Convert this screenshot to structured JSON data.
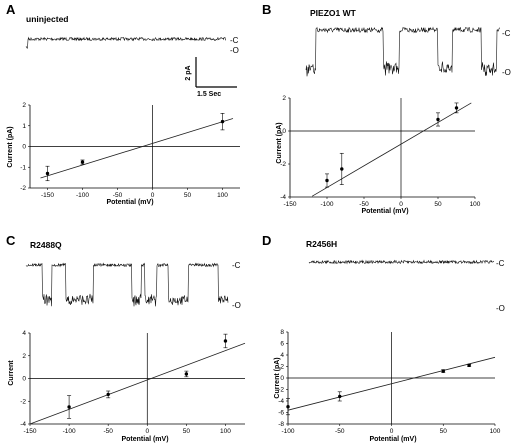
{
  "figure": {
    "scale_bar": {
      "y_label": "2 pA",
      "x_label": "1.5 Sec"
    },
    "state_labels": {
      "closed": "-C",
      "open": "-O"
    }
  },
  "chart_data": [
    {
      "panel": "A",
      "type": "scatter",
      "title": "uninjected",
      "xlabel": "Potential (mV)",
      "ylabel": "Current (pA)",
      "xlim": [
        -175,
        125
      ],
      "ylim": [
        -2,
        2
      ],
      "xticks": [
        "-150",
        "-100",
        "-50",
        "0",
        "50",
        "100"
      ],
      "yticks": [
        "-2",
        "-1",
        "0",
        "1",
        "2"
      ],
      "points": [
        {
          "x": -150,
          "y": -1.3,
          "err": 0.35
        },
        {
          "x": -100,
          "y": -0.75,
          "err": 0.1
        },
        {
          "x": 100,
          "y": 1.2,
          "err": 0.4
        }
      ],
      "fit_line": {
        "x": [
          -160,
          115
        ],
        "y": [
          -1.52,
          1.35
        ]
      },
      "trace": {
        "style": "flat",
        "open_fraction": 0.04
      }
    },
    {
      "panel": "B",
      "type": "scatter",
      "title": "PIEZO1 WT",
      "xlabel": "Potential (mV)",
      "ylabel": "Current (pA)",
      "xlim": [
        -150,
        100
      ],
      "ylim": [
        -4,
        2
      ],
      "xticks": [
        "-150",
        "-100",
        "-50",
        "0",
        "50",
        "100"
      ],
      "yticks": [
        "-4",
        "-2",
        "0",
        "2"
      ],
      "points": [
        {
          "x": -100,
          "y": -3.0,
          "err": 0.4
        },
        {
          "x": -80,
          "y": -2.3,
          "err": 0.95
        },
        {
          "x": 50,
          "y": 0.7,
          "err": 0.4
        },
        {
          "x": 75,
          "y": 1.4,
          "err": 0.3
        }
      ],
      "fit_line": {
        "x": [
          -120,
          95
        ],
        "y": [
          -3.95,
          1.7
        ]
      },
      "trace": {
        "style": "burst",
        "open_fraction": 0.45
      }
    },
    {
      "panel": "C",
      "type": "scatter",
      "title": "R2488Q",
      "xlabel": "Potential (mV)",
      "ylabel": "Current",
      "xlim": [
        -150,
        125
      ],
      "ylim": [
        -4,
        4
      ],
      "xticks": [
        "-150",
        "-100",
        "-50",
        "0",
        "50",
        "100"
      ],
      "yticks": [
        "-4",
        "-2",
        "0",
        "2",
        "4"
      ],
      "points": [
        {
          "x": -100,
          "y": -2.5,
          "err": 1.0
        },
        {
          "x": -50,
          "y": -1.4,
          "err": 0.3
        },
        {
          "x": 50,
          "y": 0.4,
          "err": 0.25
        },
        {
          "x": 100,
          "y": 3.3,
          "err": 0.6
        }
      ],
      "fit_line": {
        "x": [
          -150,
          125
        ],
        "y": [
          -4.0,
          3.1
        ]
      },
      "trace": {
        "style": "mixed",
        "open_fraction": 0.3
      }
    },
    {
      "panel": "D",
      "type": "scatter",
      "title": "R2456H",
      "xlabel": "Potential (mV)",
      "ylabel": "Current (pA)",
      "xlim": [
        -100,
        100
      ],
      "ylim": [
        -8,
        8
      ],
      "xticks": [
        "-100",
        "-50",
        "0",
        "50",
        "100"
      ],
      "yticks": [
        "-8",
        "-6",
        "-4",
        "-2",
        "0",
        "2",
        "4",
        "6",
        "8"
      ],
      "points": [
        {
          "x": -100,
          "y": -5.0,
          "err": 1.4
        },
        {
          "x": -50,
          "y": -3.2,
          "err": 0.8
        },
        {
          "x": 50,
          "y": 1.2,
          "err": 0.25
        },
        {
          "x": 75,
          "y": 2.2,
          "err": 0.2
        }
      ],
      "fit_line": {
        "x": [
          -100,
          100
        ],
        "y": [
          -5.6,
          3.6
        ]
      },
      "trace": {
        "style": "sparse",
        "open_fraction": 0.06
      }
    }
  ]
}
